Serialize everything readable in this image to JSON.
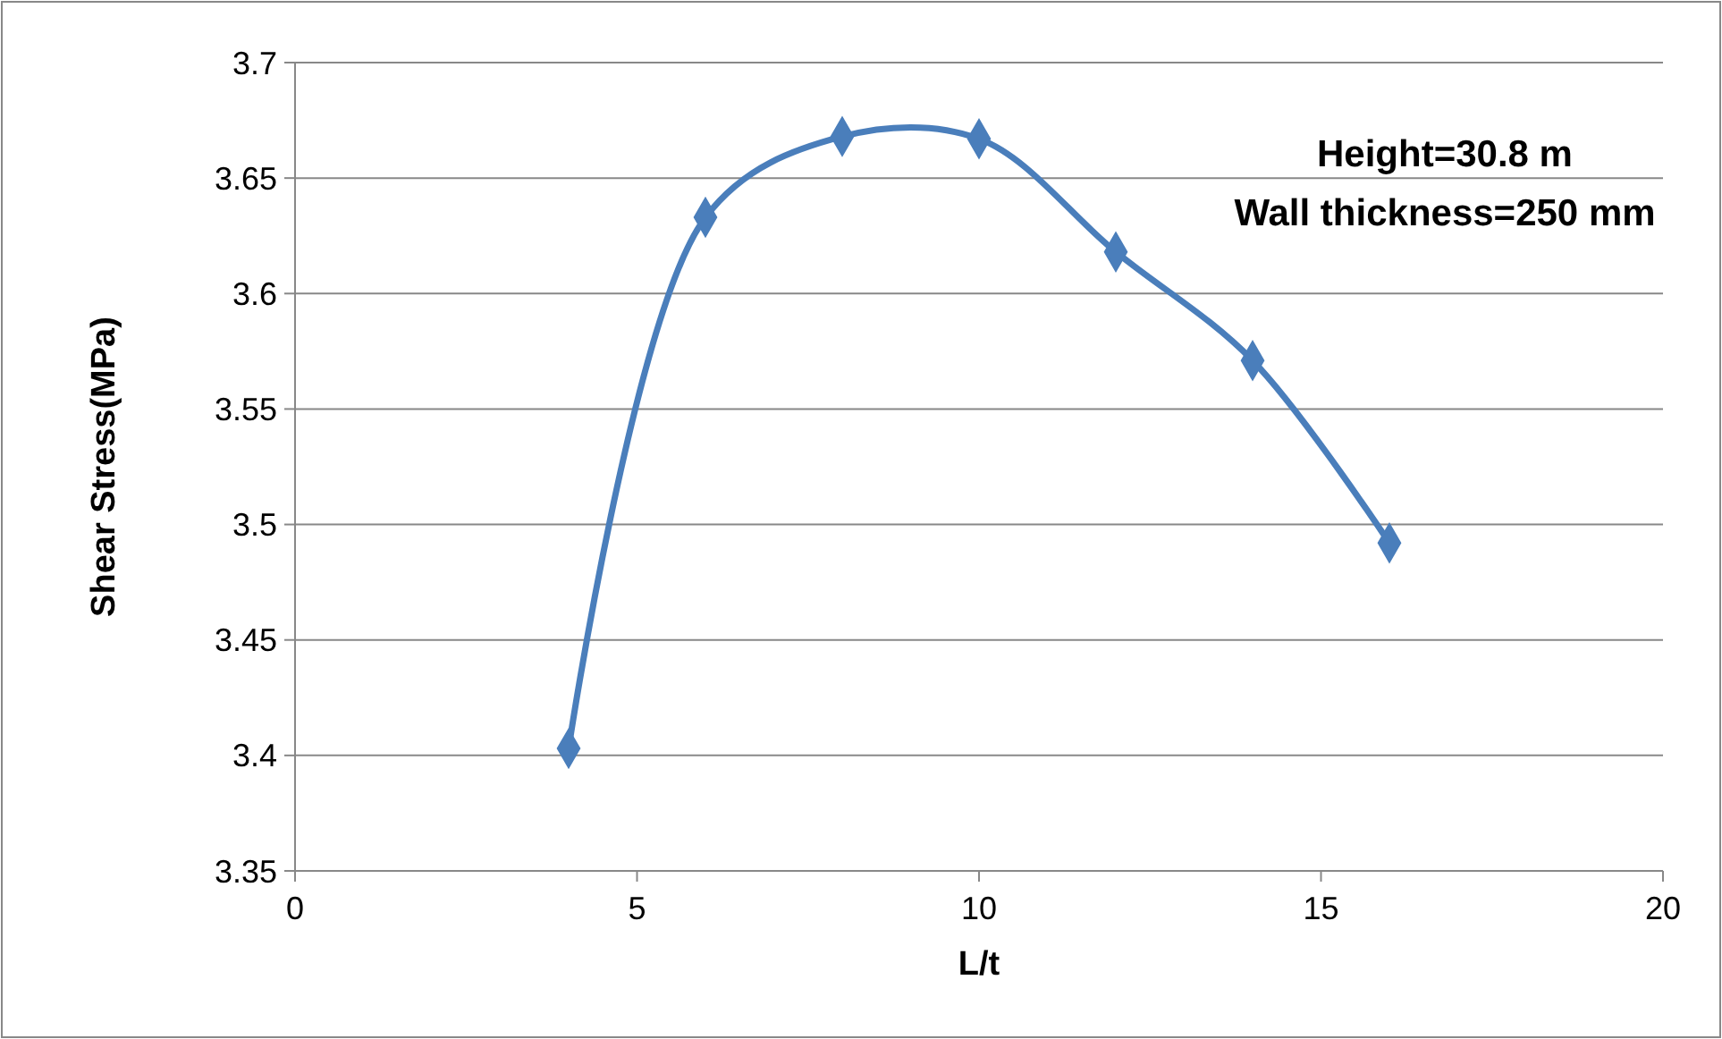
{
  "chart_data": {
    "type": "line",
    "xlabel": "L/t",
    "ylabel": "Shear Stress(MPa)",
    "annotations": [
      "Height=30.8 m",
      "Wall thickness=250 mm"
    ],
    "x": [
      4,
      6,
      8,
      10,
      12,
      14,
      16
    ],
    "series": [
      {
        "color": "#4a7ebb",
        "values": [
          3.403,
          3.633,
          3.668,
          3.667,
          3.618,
          3.571,
          3.492
        ]
      }
    ],
    "xlim": [
      0,
      20
    ],
    "xticks": [
      0,
      5,
      10,
      15,
      20
    ],
    "ylim": [
      3.35,
      3.7
    ],
    "yticks": [
      3.35,
      3.4,
      3.45,
      3.5,
      3.55,
      3.6,
      3.65,
      3.7
    ],
    "grid": "y",
    "marker": "diamond",
    "line_style": "solid"
  }
}
